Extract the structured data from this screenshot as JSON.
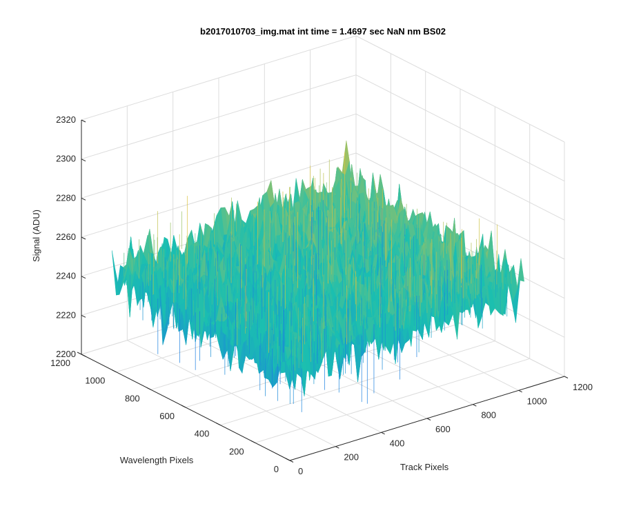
{
  "chart_data": {
    "type": "surface",
    "title": "b2017010703_img.mat int time = 1.4697 sec  NaN nm BS02",
    "xlabel": "Track Pixels",
    "ylabel": "Wavelength Pixels",
    "zlabel": "Signal (ADU)",
    "xlim": [
      0,
      1200
    ],
    "ylim": [
      0,
      1200
    ],
    "zlim": [
      2200,
      2320
    ],
    "xticks": [
      "0",
      "200",
      "400",
      "600",
      "800",
      "1000",
      "1200"
    ],
    "yticks": [
      "0",
      "200",
      "400",
      "600",
      "800",
      "1000",
      "1200"
    ],
    "zticks": [
      "2200",
      "2220",
      "2240",
      "2260",
      "2280",
      "2300",
      "2320"
    ],
    "grid": true,
    "colormap": "parula",
    "surface_extent": {
      "x": [
        0,
        1024
      ],
      "y": [
        0,
        1024
      ]
    },
    "mean_signal": 2250,
    "signal_range_approx": [
      2215,
      2305
    ],
    "colors": {
      "low": "#1a7fe0",
      "mid": "#1bbfb0",
      "high": "#d9c240"
    }
  }
}
